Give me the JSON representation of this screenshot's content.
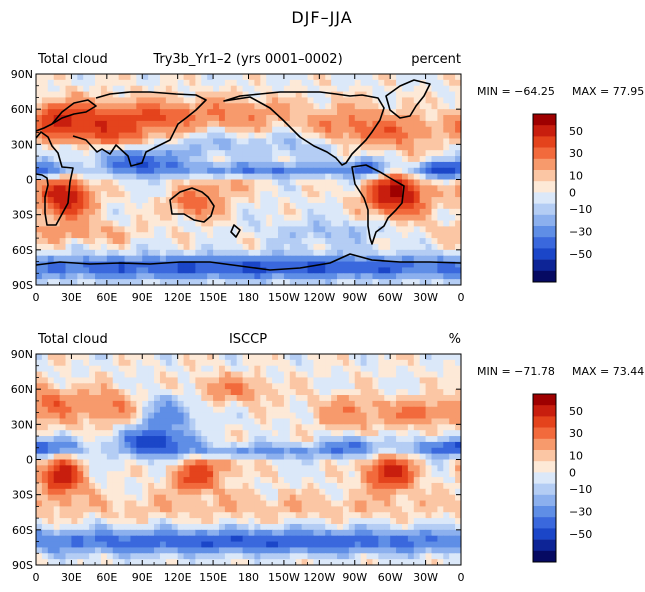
{
  "figure_title": "DJF–JJA",
  "colorscale": {
    "levels": [
      50,
      30,
      10,
      0,
      -10,
      -30,
      -50
    ],
    "labels": [
      "50",
      "30",
      "10",
      "0",
      "−10",
      "−30",
      "−50"
    ],
    "colors": [
      "#9e0000",
      "#c81e0e",
      "#e4431c",
      "#f26a3c",
      "#f79a6c",
      "#fbc6a4",
      "#fde9d7",
      "#dbe8f9",
      "#b4cdf4",
      "#8cb0ee",
      "#5f8ee6",
      "#3a68dd",
      "#1b46c8",
      "#0d2496",
      "#060a62"
    ]
  },
  "axes": {
    "lat_labels": [
      "90N",
      "60N",
      "30N",
      "0",
      "30S",
      "60S",
      "90S"
    ],
    "lon_labels": [
      "0",
      "30E",
      "60E",
      "90E",
      "120E",
      "150E",
      "180",
      "150W",
      "120W",
      "90W",
      "60W",
      "30W",
      "0"
    ]
  },
  "chart_data": [
    {
      "type": "heatmap",
      "name": "model",
      "variable": "Total cloud",
      "title": "Try3b_Yr1–2 (yrs 0001–0002)",
      "units": "percent",
      "min_label": "MIN = −64.25",
      "max_label": "MAX =  77.95",
      "min": -64.25,
      "max": 77.95,
      "xlim": [
        0,
        360
      ],
      "ylim": [
        -90,
        90
      ],
      "features": [
        {
          "lon": 25,
          "lat": -15,
          "amp": 55,
          "sx": 15,
          "sy": 12
        },
        {
          "lon": 305,
          "lat": -12,
          "amp": 58,
          "sx": 17,
          "sy": 12
        },
        {
          "lon": 135,
          "lat": -20,
          "amp": 30,
          "sx": 14,
          "sy": 8
        },
        {
          "lon": 55,
          "lat": 45,
          "amp": 38,
          "sx": 30,
          "sy": 13
        },
        {
          "lon": 18,
          "lat": 52,
          "amp": 30,
          "sx": 15,
          "sy": 10
        },
        {
          "lon": 105,
          "lat": 55,
          "amp": 22,
          "sx": 22,
          "sy": 9
        },
        {
          "lon": 170,
          "lat": 55,
          "amp": 20,
          "sx": 30,
          "sy": 10
        },
        {
          "lon": 265,
          "lat": 45,
          "amp": 22,
          "sx": 25,
          "sy": 12
        },
        {
          "lon": 310,
          "lat": 40,
          "amp": 20,
          "sx": 20,
          "sy": 10
        },
        {
          "lon": 90,
          "lat": 15,
          "amp": -42,
          "sx": 22,
          "sy": 8
        },
        {
          "lon": 10,
          "lat": 8,
          "amp": -28,
          "sx": 22,
          "sy": 5
        },
        {
          "lon": 200,
          "lat": 8,
          "amp": -30,
          "sx": 60,
          "sy": 4
        },
        {
          "lon": 280,
          "lat": 10,
          "amp": -30,
          "sx": 12,
          "sy": 6
        },
        {
          "lon": 340,
          "lat": 8,
          "amp": -34,
          "sx": 16,
          "sy": 5
        },
        {
          "lon": 225,
          "lat": 30,
          "amp": -14,
          "sx": 30,
          "sy": 8
        },
        {
          "lon": 150,
          "lat": 30,
          "amp": -14,
          "sx": 20,
          "sy": 8
        },
        {
          "lon": 180,
          "lat": -75,
          "amp": -42,
          "sx": 200,
          "sy": 7
        },
        {
          "lon": 30,
          "lat": -45,
          "amp": 13,
          "sx": 40,
          "sy": 6
        },
        {
          "lon": 250,
          "lat": -45,
          "amp": -12,
          "sx": 40,
          "sy": 8
        },
        {
          "lon": 160,
          "lat": -5,
          "amp": 14,
          "sx": 15,
          "sy": 6
        },
        {
          "lon": 40,
          "lat": 25,
          "amp": -12,
          "sx": 20,
          "sy": 6
        }
      ]
    },
    {
      "type": "heatmap",
      "name": "obs",
      "variable": "Total cloud",
      "title": "ISCCP",
      "units": "%",
      "min_label": "MIN = −71.78",
      "max_label": "MAX =  73.44",
      "min": -71.78,
      "max": 73.44,
      "xlim": [
        0,
        360
      ],
      "ylim": [
        -90,
        90
      ],
      "features": [
        {
          "lon": 22,
          "lat": -15,
          "amp": 50,
          "sx": 12,
          "sy": 11
        },
        {
          "lon": 300,
          "lat": -12,
          "amp": 48,
          "sx": 14,
          "sy": 10
        },
        {
          "lon": 135,
          "lat": -17,
          "amp": 34,
          "sx": 14,
          "sy": 8
        },
        {
          "lon": 60,
          "lat": 45,
          "amp": 22,
          "sx": 25,
          "sy": 10
        },
        {
          "lon": 12,
          "lat": 48,
          "amp": 22,
          "sx": 12,
          "sy": 10
        },
        {
          "lon": 165,
          "lat": 60,
          "amp": 18,
          "sx": 25,
          "sy": 8
        },
        {
          "lon": 265,
          "lat": 40,
          "amp": 18,
          "sx": 20,
          "sy": 10
        },
        {
          "lon": 325,
          "lat": 40,
          "amp": 24,
          "sx": 20,
          "sy": 8
        },
        {
          "lon": 100,
          "lat": 15,
          "amp": -46,
          "sx": 20,
          "sy": 8
        },
        {
          "lon": 10,
          "lat": 10,
          "amp": -32,
          "sx": 22,
          "sy": 5
        },
        {
          "lon": 200,
          "lat": 7,
          "amp": -24,
          "sx": 60,
          "sy": 4
        },
        {
          "lon": 270,
          "lat": 12,
          "amp": -28,
          "sx": 15,
          "sy": 5
        },
        {
          "lon": 340,
          "lat": 10,
          "amp": -26,
          "sx": 15,
          "sy": 5
        },
        {
          "lon": 110,
          "lat": 40,
          "amp": -24,
          "sx": 18,
          "sy": 12
        },
        {
          "lon": 180,
          "lat": -70,
          "amp": -40,
          "sx": 200,
          "sy": 7
        },
        {
          "lon": 180,
          "lat": -40,
          "amp": 8,
          "sx": 200,
          "sy": 8
        },
        {
          "lon": 150,
          "lat": -5,
          "amp": 16,
          "sx": 20,
          "sy": 6
        }
      ]
    }
  ]
}
